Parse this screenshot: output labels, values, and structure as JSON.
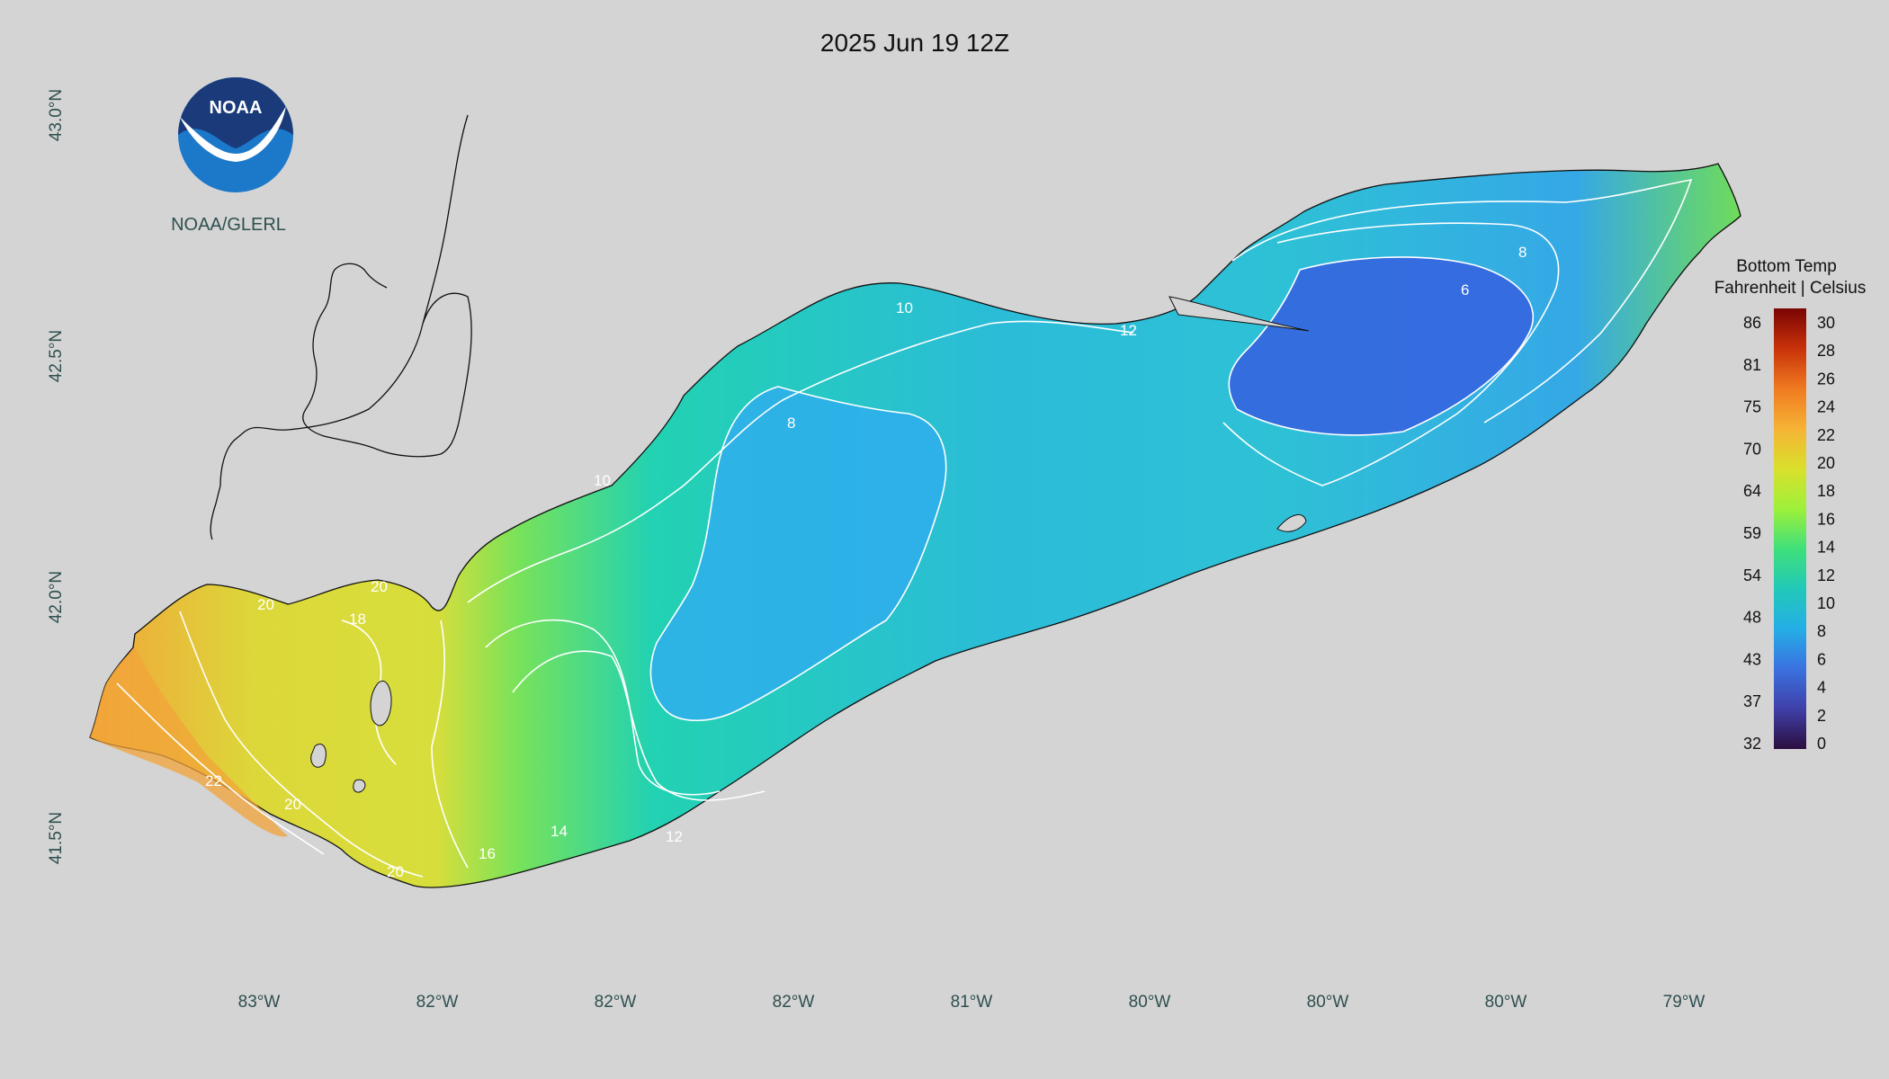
{
  "title": "2025 Jun 19 12Z",
  "organization": "NOAA/GLERL",
  "logo_text": "NOAA",
  "latitude_labels": [
    "43.0°N",
    "42.5°N",
    "42.0°N",
    "41.5°N"
  ],
  "longitude_labels": [
    "83°W",
    "82°W",
    "82°W",
    "82°W",
    "81°W",
    "80°W",
    "80°W",
    "80°W",
    "79°W"
  ],
  "colorbar": {
    "title_line1": "Bottom Temp",
    "title_line2": "Fahrenheit | Celsius",
    "fahrenheit_ticks": [
      "86",
      "81",
      "75",
      "70",
      "64",
      "59",
      "54",
      "48",
      "43",
      "37",
      "32"
    ],
    "celsius_ticks": [
      "30",
      "28",
      "26",
      "24",
      "22",
      "20",
      "18",
      "16",
      "14",
      "12",
      "10",
      "8",
      "6",
      "4",
      "2",
      "0"
    ],
    "min_c": 0,
    "max_c": 31,
    "colors": [
      "#2b0f3f",
      "#3f3fa8",
      "#3a72e0",
      "#25aee6",
      "#22c9b8",
      "#3fe07a",
      "#9ef03a",
      "#d9e02c",
      "#f6b335",
      "#f07a20",
      "#c8320a",
      "#7a0403"
    ]
  },
  "contour_labels": [
    "8",
    "6",
    "8",
    "10",
    "10",
    "12",
    "12",
    "14",
    "16",
    "18",
    "20",
    "20",
    "20",
    "22",
    "20"
  ],
  "colors": {
    "background": "#d4d4d4",
    "west_basin": "#d8dc3a",
    "central_basin": "#2bbcd8",
    "east_basin_deep": "#3566de",
    "nearshore": "#72e45a"
  }
}
